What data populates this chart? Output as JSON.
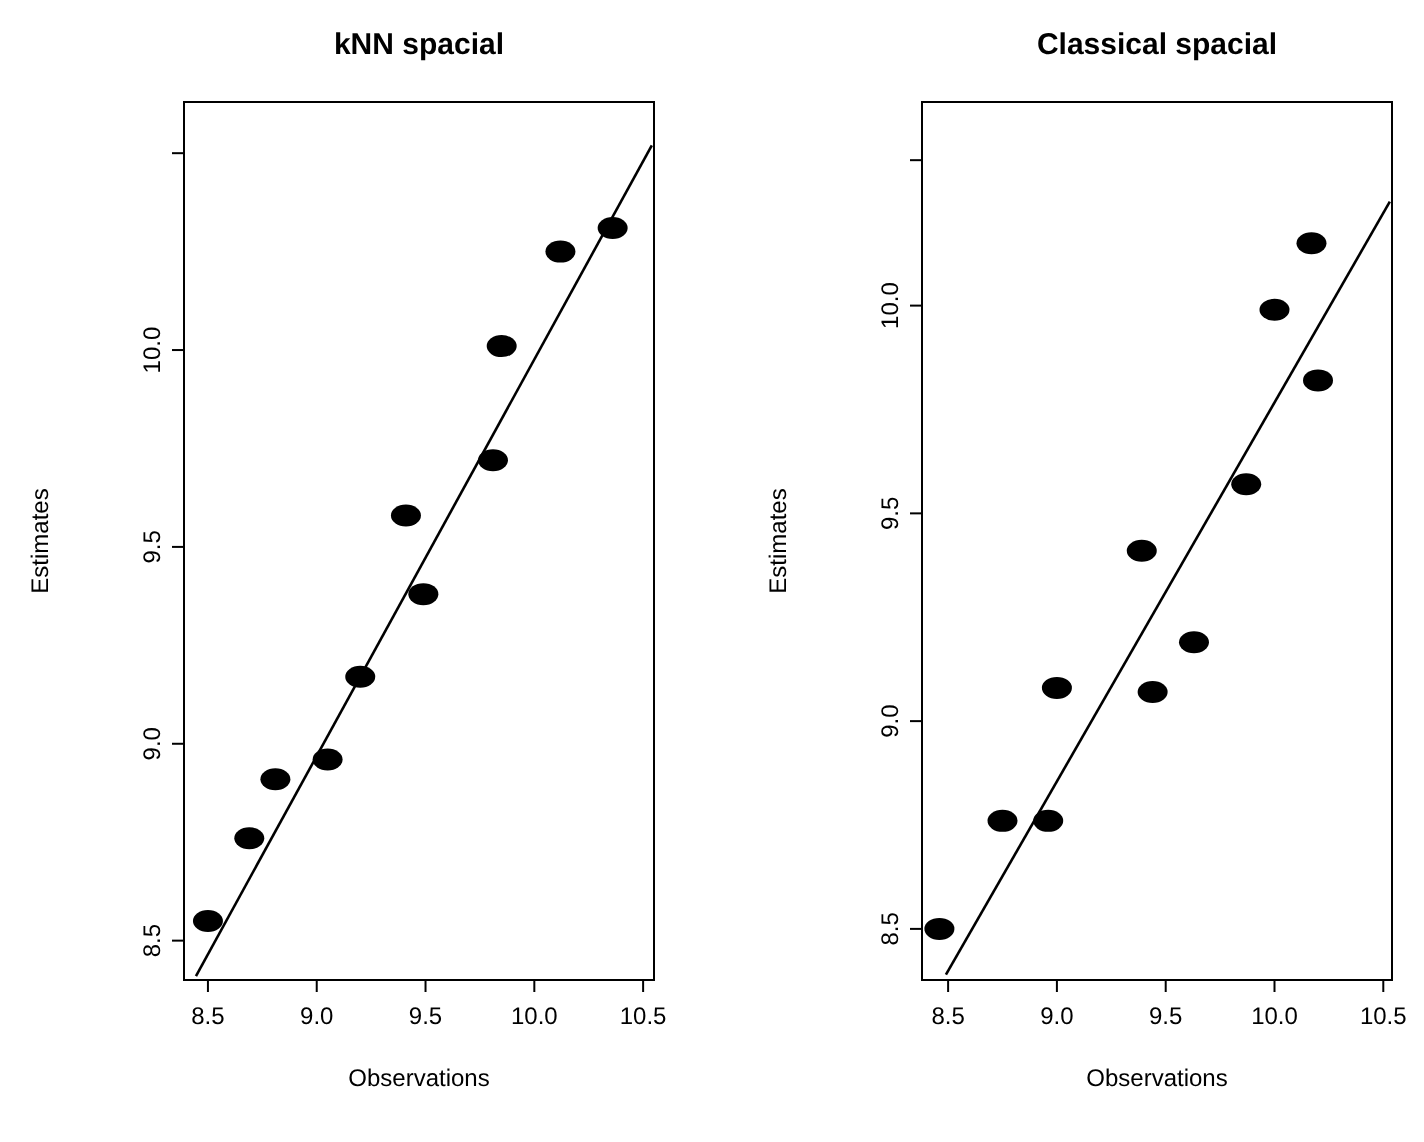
{
  "chart_data": [
    {
      "type": "scatter",
      "title": "kNN spacial",
      "xlabel": "Observations",
      "ylabel": "Estimates",
      "xlim": [
        8.39,
        10.55
      ],
      "ylim": [
        8.4,
        10.63
      ],
      "xticks": [
        {
          "value": 8.5,
          "label": "8.5"
        },
        {
          "value": 9,
          "label": "9.0"
        },
        {
          "value": 9.5,
          "label": "9.5"
        },
        {
          "value": 10,
          "label": "10.0"
        },
        {
          "value": 10.5,
          "label": "10.5"
        }
      ],
      "yticks": [
        {
          "value": 8.5,
          "label": "8.5"
        },
        {
          "value": 9,
          "label": "9.0"
        },
        {
          "value": 9.5,
          "label": "9.5"
        },
        {
          "value": 10,
          "label": "10.0"
        },
        {
          "value": 10.5,
          "label": null
        }
      ],
      "series": [
        {
          "color": "#000000",
          "marker": "circle",
          "x": [
            8.5,
            8.69,
            8.81,
            9.05,
            9.2,
            9.41,
            9.49,
            9.81,
            9.85,
            10.12,
            10.36
          ],
          "values": [
            8.55,
            8.76,
            8.91,
            8.96,
            9.17,
            9.58,
            9.38,
            9.72,
            10.01,
            10.25,
            10.31
          ]
        },
        {
          "type": "line",
          "color": "#000000",
          "line_style": "solid",
          "marker": "none",
          "x": [
            8.445,
            10.54
          ],
          "values": [
            8.41,
            10.52
          ]
        }
      ]
    },
    {
      "type": "scatter",
      "title": "Classical spacial",
      "xlabel": "Observations",
      "ylabel": "Estimates",
      "xlim": [
        8.38,
        10.54
      ],
      "ylim": [
        8.377,
        10.49
      ],
      "xticks": [
        {
          "value": 8.5,
          "label": "8.5"
        },
        {
          "value": 9,
          "label": "9.0"
        },
        {
          "value": 9.5,
          "label": "9.5"
        },
        {
          "value": 10,
          "label": "10.0"
        },
        {
          "value": 10.5,
          "label": "10.5"
        }
      ],
      "yticks": [
        {
          "value": 8.5,
          "label": "8.5"
        },
        {
          "value": 9,
          "label": "9.0"
        },
        {
          "value": 9.5,
          "label": "9.5"
        },
        {
          "value": 10,
          "label": "10.0"
        },
        {
          "value": 10.35,
          "label": null
        }
      ],
      "series": [
        {
          "color": "#000000",
          "marker": "circle",
          "x": [
            8.46,
            8.75,
            8.96,
            9.0,
            9.39,
            9.44,
            9.63,
            9.87,
            10.0,
            10.17,
            10.2
          ],
          "values": [
            8.5,
            8.76,
            8.76,
            9.08,
            9.41,
            9.07,
            9.19,
            9.57,
            9.99,
            10.15,
            9.82
          ]
        },
        {
          "type": "line",
          "color": "#000000",
          "line_style": "solid",
          "marker": "none",
          "x": [
            8.49,
            10.53
          ],
          "values": [
            8.39,
            10.25
          ]
        }
      ]
    }
  ]
}
